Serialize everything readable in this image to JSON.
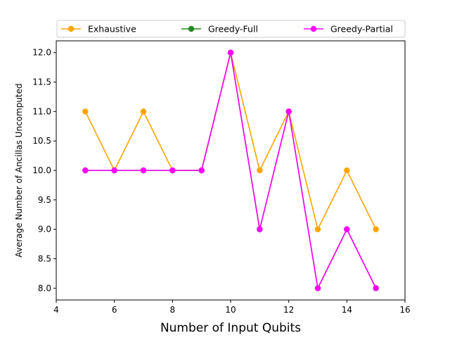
{
  "chart_data": {
    "type": "line",
    "title": "",
    "xlabel": "Number of Input Qubits",
    "ylabel": "Average Number of Ancillas Uncomputed",
    "xlim": [
      4,
      16
    ],
    "ylim": [
      7.8,
      12.2
    ],
    "xticks": [
      4,
      6,
      8,
      10,
      12,
      14,
      16
    ],
    "yticks": [
      8.0,
      8.5,
      9.0,
      9.5,
      10.0,
      10.5,
      11.0,
      11.5,
      12.0
    ],
    "x": [
      5,
      6,
      7,
      8,
      9,
      10,
      11,
      12,
      13,
      14,
      15
    ],
    "grid": false,
    "legend_position": "top",
    "series": [
      {
        "name": "Exhaustive",
        "color": "#ffa500",
        "marker": "circle",
        "values": [
          11,
          10,
          11,
          10,
          10,
          12,
          10,
          11,
          9,
          10,
          9
        ]
      },
      {
        "name": "Greedy-Full",
        "color": "#228b22",
        "marker": "circle",
        "values": [
          10,
          10,
          10,
          10,
          10,
          12,
          9,
          11,
          8,
          9,
          8
        ]
      },
      {
        "name": "Greedy-Partial",
        "color": "#ff00ff",
        "marker": "circle",
        "values": [
          10,
          10,
          10,
          10,
          10,
          12,
          9,
          11,
          8,
          9,
          8
        ]
      }
    ]
  }
}
